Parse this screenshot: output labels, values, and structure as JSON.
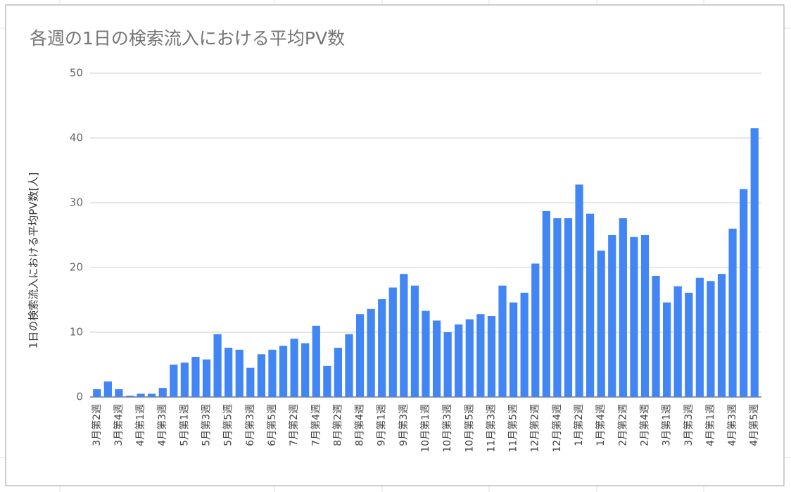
{
  "chart_data": {
    "type": "bar",
    "title": "各週の1日の検索流入における平均PV数",
    "y_label": "1日の検索流入における平均PV数[人]",
    "categories": [
      "3月第2週",
      null,
      "3月第4週",
      null,
      "4月第1週",
      null,
      "4月第3週",
      null,
      "5月第1週",
      null,
      "5月第3週",
      null,
      "5月第5週",
      null,
      "6月第3週",
      null,
      "6月第5週",
      null,
      "7月第2週",
      null,
      "7月第4週",
      null,
      "8月第2週",
      null,
      "8月第4週",
      null,
      "9月第1週",
      null,
      "9月第3週",
      null,
      "10月第1週",
      null,
      "10月第3週",
      null,
      "10月第5週",
      null,
      "11月第3週",
      null,
      "11月第5週",
      null,
      "12月第2週",
      null,
      "12月第4週",
      null,
      "1月第2週",
      null,
      "1月第4週",
      null,
      "2月第2週",
      null,
      "2月第4週",
      null,
      "3月第1週",
      null,
      "3月第3週",
      null,
      "4月第1週",
      null,
      "4月第3週",
      null,
      "4月第5週"
    ],
    "values": [
      1.2,
      2.4,
      1.2,
      0.2,
      0.5,
      0.5,
      1.4,
      5.0,
      5.3,
      6.2,
      5.8,
      9.7,
      7.6,
      7.3,
      4.5,
      6.6,
      7.3,
      7.9,
      9.0,
      8.3,
      11.0,
      4.8,
      7.6,
      9.7,
      12.8,
      13.6,
      15.1,
      16.9,
      19.0,
      17.2,
      13.3,
      11.8,
      10.0,
      11.2,
      12.0,
      12.8,
      12.5,
      17.2,
      14.6,
      16.1,
      20.6,
      28.7,
      27.6,
      27.6,
      32.8,
      28.3,
      22.6,
      25.0,
      27.6,
      24.7,
      25.0,
      18.7,
      14.6,
      17.1,
      16.1,
      18.4,
      17.9,
      19.0,
      26.0,
      32.1,
      41.5
    ],
    "color": "#4285f4",
    "ylim": [
      0,
      50
    ],
    "yticks": [
      0,
      10,
      20,
      30,
      40,
      50
    ],
    "grid": true
  }
}
